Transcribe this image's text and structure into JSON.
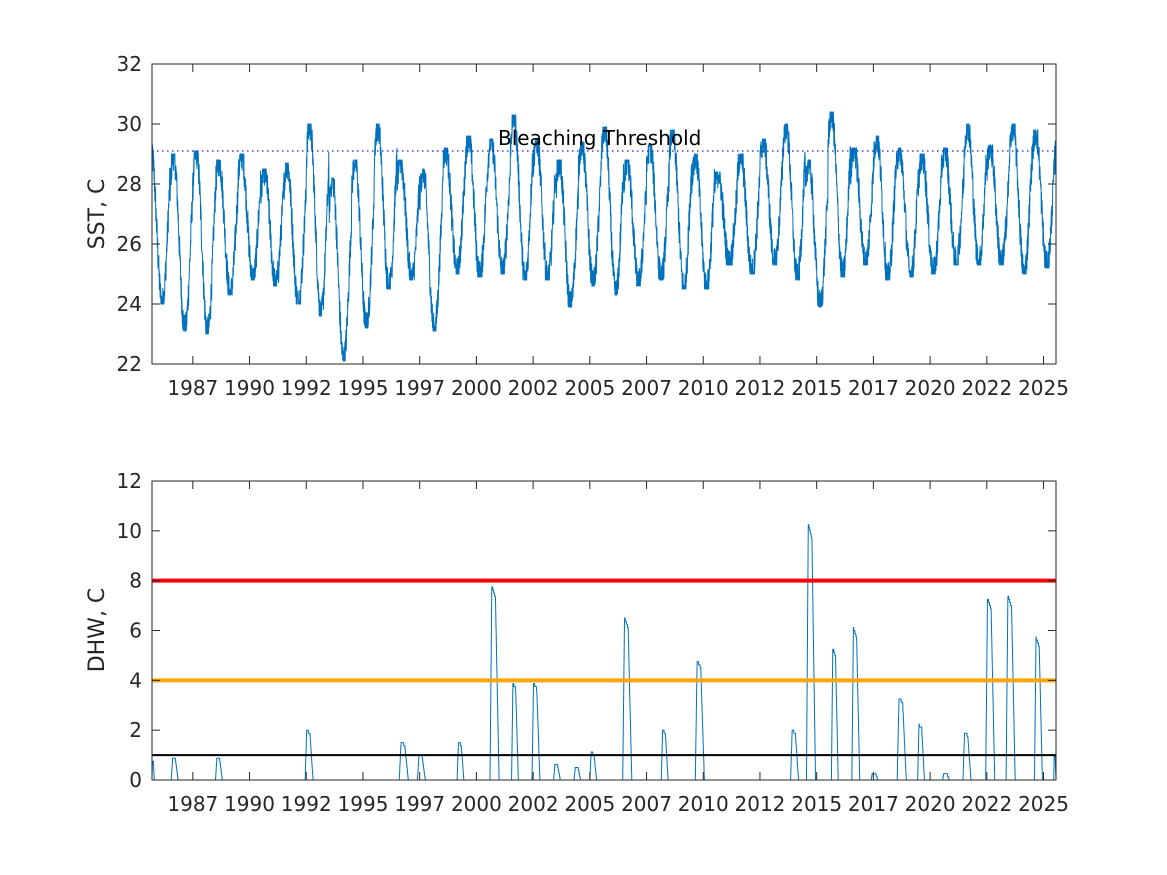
{
  "chart_data": [
    {
      "type": "line",
      "title": "",
      "xlabel": "",
      "ylabel": "SST, C",
      "xlim": [
        1985.2,
        2025.05
      ],
      "ylim": [
        22,
        32
      ],
      "xticks": [
        "1987",
        "1990",
        "1992",
        "1995",
        "1997",
        "2000",
        "2002",
        "2005",
        "2007",
        "2010",
        "2012",
        "2015",
        "2017",
        "2020",
        "2022",
        "2025"
      ],
      "xtick_values": [
        1987.0,
        1989.5,
        1992.0,
        1994.5,
        1997.0,
        1999.5,
        2002.0,
        2004.5,
        2007.0,
        2009.5,
        2012.0,
        2014.5,
        2017.0,
        2019.5,
        2022.0,
        2024.5
      ],
      "yticks": [
        "22",
        "24",
        "26",
        "28",
        "30",
        "32"
      ],
      "ytick_values": [
        22,
        24,
        26,
        28,
        30,
        32
      ],
      "grid": false,
      "series": [
        {
          "color": "#0072bd",
          "daily_seasonal_profile": true,
          "annual_max": [
            29.3,
            29.0,
            29.1,
            28.8,
            29.0,
            28.5,
            28.7,
            30.0,
            28.2,
            28.8,
            30.0,
            28.8,
            28.5,
            29.2,
            29.6,
            29.5,
            30.3,
            29.5,
            28.8,
            29.4,
            29.9,
            28.8,
            29.3,
            29.8,
            29.0,
            28.4,
            29.0,
            29.5,
            30.0,
            28.8,
            30.4,
            29.2,
            29.6,
            29.2,
            29.0,
            29.2,
            30.0,
            29.3,
            30.0,
            29.8
          ],
          "annual_min": [
            24.0,
            23.1,
            23.0,
            24.3,
            24.8,
            24.6,
            24.0,
            23.6,
            22.1,
            23.2,
            24.5,
            24.8,
            23.1,
            25.0,
            24.9,
            25.0,
            24.8,
            24.8,
            23.9,
            24.6,
            24.3,
            24.6,
            24.8,
            24.5,
            24.5,
            25.3,
            25.0,
            25.3,
            24.8,
            23.9,
            24.9,
            25.3,
            24.8,
            24.9,
            25.0,
            25.3,
            25.3,
            25.3,
            25.0,
            25.2
          ]
        },
        {
          "name": "Bleaching Threshold",
          "type": "hline",
          "y": 29.1,
          "color": "#1f1fd6",
          "style": "dotted"
        }
      ],
      "annotations": [
        {
          "text": "Bleaching Threshold",
          "x": 2000.5,
          "y": 29.3
        }
      ]
    },
    {
      "type": "line",
      "title": "",
      "xlabel": "",
      "ylabel": "DHW, C",
      "xlim": [
        1985.2,
        2025.05
      ],
      "ylim": [
        0,
        12
      ],
      "xticks": [
        "1987",
        "1990",
        "1992",
        "1995",
        "1997",
        "2000",
        "2002",
        "2005",
        "2007",
        "2010",
        "2012",
        "2015",
        "2017",
        "2020",
        "2022",
        "2025"
      ],
      "xtick_values": [
        1987.0,
        1989.5,
        1992.0,
        1994.5,
        1997.0,
        1999.5,
        2002.0,
        2004.5,
        2007.0,
        2009.5,
        2012.0,
        2014.5,
        2017.0,
        2019.5,
        2022.0,
        2024.5
      ],
      "yticks": [
        "0",
        "2",
        "4",
        "6",
        "8",
        "10",
        "12"
      ],
      "ytick_values": [
        0,
        2,
        4,
        6,
        8,
        10,
        12
      ],
      "grid": false,
      "series": [
        {
          "color": "#0072bd",
          "events": [
            {
              "start": 1985.2,
              "end": 1985.3,
              "peak": 0.8
            },
            {
              "start": 1986.05,
              "end": 1986.35,
              "peak": 0.9
            },
            {
              "start": 1988.0,
              "end": 1988.3,
              "peak": 0.9
            },
            {
              "start": 1991.95,
              "end": 1992.3,
              "peak": 2.0
            },
            {
              "start": 1996.1,
              "end": 1996.5,
              "peak": 1.5
            },
            {
              "start": 1996.9,
              "end": 1997.25,
              "peak": 1.0
            },
            {
              "start": 1998.65,
              "end": 1998.95,
              "peak": 1.5
            },
            {
              "start": 2000.1,
              "end": 2000.5,
              "peak": 7.8
            },
            {
              "start": 2001.05,
              "end": 2001.35,
              "peak": 3.9
            },
            {
              "start": 2001.95,
              "end": 2002.3,
              "peak": 3.9
            },
            {
              "start": 2002.9,
              "end": 2003.2,
              "peak": 0.6
            },
            {
              "start": 2003.8,
              "end": 2004.1,
              "peak": 0.5
            },
            {
              "start": 2004.5,
              "end": 2004.8,
              "peak": 1.1
            },
            {
              "start": 2005.95,
              "end": 2006.35,
              "peak": 6.5
            },
            {
              "start": 2007.65,
              "end": 2007.95,
              "peak": 2.0
            },
            {
              "start": 2009.15,
              "end": 2009.55,
              "peak": 4.8
            },
            {
              "start": 2013.35,
              "end": 2013.7,
              "peak": 2.0
            },
            {
              "start": 2014.05,
              "end": 2014.45,
              "peak": 10.3
            },
            {
              "start": 2015.15,
              "end": 2015.45,
              "peak": 5.3
            },
            {
              "start": 2016.05,
              "end": 2016.4,
              "peak": 6.1
            },
            {
              "start": 2016.9,
              "end": 2017.2,
              "peak": 0.3
            },
            {
              "start": 2018.05,
              "end": 2018.45,
              "peak": 3.3
            },
            {
              "start": 2018.95,
              "end": 2019.25,
              "peak": 2.2
            },
            {
              "start": 2020.05,
              "end": 2020.35,
              "peak": 0.3
            },
            {
              "start": 2020.95,
              "end": 2021.3,
              "peak": 1.9
            },
            {
              "start": 2021.95,
              "end": 2022.35,
              "peak": 7.3
            },
            {
              "start": 2022.85,
              "end": 2023.25,
              "peak": 7.4
            },
            {
              "start": 2024.1,
              "end": 2024.45,
              "peak": 5.7
            },
            {
              "start": 2024.95,
              "end": 2025.05,
              "peak": 1.0
            }
          ]
        },
        {
          "type": "hline",
          "y": 8,
          "color": "#ff0000",
          "style": "solid"
        },
        {
          "type": "hline",
          "y": 4,
          "color": "#ffa500",
          "style": "solid"
        },
        {
          "type": "hline",
          "y": 1,
          "color": "#000000",
          "style": "solid"
        }
      ]
    }
  ]
}
